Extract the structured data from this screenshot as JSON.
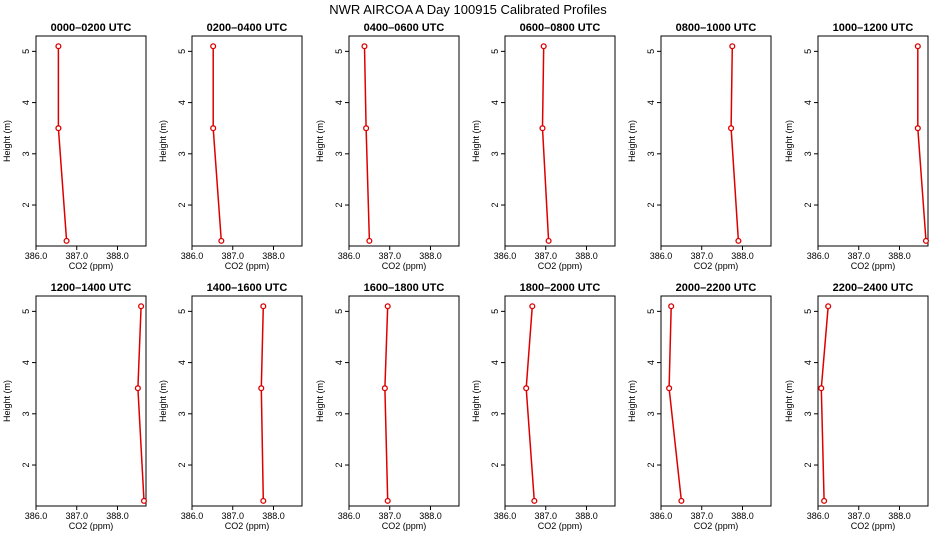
{
  "title": "NWR AIRCOA A  Day 100915  Calibrated Profiles",
  "colors": {
    "series": "#dd0000",
    "frame": "#000000"
  },
  "chart_data": [
    {
      "type": "line",
      "title": "0000–0200 UTC",
      "xlabel": "CO2 (ppm)",
      "ylabel": "Height (m)",
      "xlim": [
        386.0,
        388.7
      ],
      "ylim": [
        1.2,
        5.3
      ],
      "x_ticks": [
        "386.0",
        "387.0",
        "388.0"
      ],
      "y_ticks": [
        "2",
        "3",
        "4",
        "5"
      ],
      "grid": false,
      "points": [
        {
          "x": 386.75,
          "y": 1.3
        },
        {
          "x": 386.55,
          "y": 3.5
        },
        {
          "x": 386.55,
          "y": 5.1
        }
      ]
    },
    {
      "type": "line",
      "title": "0200–0400 UTC",
      "xlabel": "CO2 (ppm)",
      "ylabel": "Height (m)",
      "xlim": [
        386.0,
        388.7
      ],
      "ylim": [
        1.2,
        5.3
      ],
      "x_ticks": [
        "386.0",
        "387.0",
        "388.0"
      ],
      "y_ticks": [
        "2",
        "3",
        "4",
        "5"
      ],
      "grid": false,
      "points": [
        {
          "x": 386.72,
          "y": 1.3
        },
        {
          "x": 386.52,
          "y": 3.5
        },
        {
          "x": 386.52,
          "y": 5.1
        }
      ]
    },
    {
      "type": "line",
      "title": "0400–0600 UTC",
      "xlabel": "CO2 (ppm)",
      "ylabel": "Height (m)",
      "xlim": [
        386.0,
        388.7
      ],
      "ylim": [
        1.2,
        5.3
      ],
      "x_ticks": [
        "386.0",
        "387.0",
        "388.0"
      ],
      "y_ticks": [
        "2",
        "3",
        "4",
        "5"
      ],
      "grid": false,
      "points": [
        {
          "x": 386.5,
          "y": 1.3
        },
        {
          "x": 386.42,
          "y": 3.5
        },
        {
          "x": 386.38,
          "y": 5.1
        }
      ]
    },
    {
      "type": "line",
      "title": "0600–0800 UTC",
      "xlabel": "CO2 (ppm)",
      "ylabel": "Height (m)",
      "xlim": [
        386.0,
        388.7
      ],
      "ylim": [
        1.2,
        5.3
      ],
      "x_ticks": [
        "386.0",
        "387.0",
        "388.0"
      ],
      "y_ticks": [
        "2",
        "3",
        "4",
        "5"
      ],
      "grid": false,
      "points": [
        {
          "x": 387.07,
          "y": 1.3
        },
        {
          "x": 386.92,
          "y": 3.5
        },
        {
          "x": 386.95,
          "y": 5.1
        }
      ]
    },
    {
      "type": "line",
      "title": "0800–1000 UTC",
      "xlabel": "CO2 (ppm)",
      "ylabel": "Height (m)",
      "xlim": [
        386.0,
        388.7
      ],
      "ylim": [
        1.2,
        5.3
      ],
      "x_ticks": [
        "386.0",
        "387.0",
        "388.0"
      ],
      "y_ticks": [
        "2",
        "3",
        "4",
        "5"
      ],
      "grid": false,
      "points": [
        {
          "x": 387.9,
          "y": 1.3
        },
        {
          "x": 387.72,
          "y": 3.5
        },
        {
          "x": 387.75,
          "y": 5.1
        }
      ]
    },
    {
      "type": "line",
      "title": "1000–1200 UTC",
      "xlabel": "CO2 (ppm)",
      "ylabel": "Height (m)",
      "xlim": [
        386.0,
        388.7
      ],
      "ylim": [
        1.2,
        5.3
      ],
      "x_ticks": [
        "386.0",
        "387.0",
        "388.0"
      ],
      "y_ticks": [
        "2",
        "3",
        "4",
        "5"
      ],
      "grid": false,
      "points": [
        {
          "x": 388.65,
          "y": 1.3
        },
        {
          "x": 388.45,
          "y": 3.5
        },
        {
          "x": 388.45,
          "y": 5.1
        }
      ]
    },
    {
      "type": "line",
      "title": "1200–1400 UTC",
      "xlabel": "CO2 (ppm)",
      "ylabel": "Height (m)",
      "xlim": [
        386.0,
        388.7
      ],
      "ylim": [
        1.2,
        5.3
      ],
      "x_ticks": [
        "386.0",
        "387.0",
        "388.0"
      ],
      "y_ticks": [
        "2",
        "3",
        "4",
        "5"
      ],
      "grid": false,
      "points": [
        {
          "x": 388.65,
          "y": 1.3
        },
        {
          "x": 388.5,
          "y": 3.5
        },
        {
          "x": 388.58,
          "y": 5.1
        }
      ]
    },
    {
      "type": "line",
      "title": "1400–1600 UTC",
      "xlabel": "CO2 (ppm)",
      "ylabel": "Height (m)",
      "xlim": [
        386.0,
        388.7
      ],
      "ylim": [
        1.2,
        5.3
      ],
      "x_ticks": [
        "386.0",
        "387.0",
        "388.0"
      ],
      "y_ticks": [
        "2",
        "3",
        "4",
        "5"
      ],
      "grid": false,
      "points": [
        {
          "x": 387.75,
          "y": 1.3
        },
        {
          "x": 387.7,
          "y": 3.5
        },
        {
          "x": 387.75,
          "y": 5.1
        }
      ]
    },
    {
      "type": "line",
      "title": "1600–1800 UTC",
      "xlabel": "CO2 (ppm)",
      "ylabel": "Height (m)",
      "xlim": [
        386.0,
        388.7
      ],
      "ylim": [
        1.2,
        5.3
      ],
      "x_ticks": [
        "386.0",
        "387.0",
        "388.0"
      ],
      "y_ticks": [
        "2",
        "3",
        "4",
        "5"
      ],
      "grid": false,
      "points": [
        {
          "x": 386.95,
          "y": 1.3
        },
        {
          "x": 386.88,
          "y": 3.5
        },
        {
          "x": 386.95,
          "y": 5.1
        }
      ]
    },
    {
      "type": "line",
      "title": "1800–2000 UTC",
      "xlabel": "CO2 (ppm)",
      "ylabel": "Height (m)",
      "xlim": [
        386.0,
        388.7
      ],
      "ylim": [
        1.2,
        5.3
      ],
      "x_ticks": [
        "386.0",
        "387.0",
        "388.0"
      ],
      "y_ticks": [
        "2",
        "3",
        "4",
        "5"
      ],
      "grid": false,
      "points": [
        {
          "x": 386.72,
          "y": 1.3
        },
        {
          "x": 386.52,
          "y": 3.5
        },
        {
          "x": 386.67,
          "y": 5.1
        }
      ]
    },
    {
      "type": "line",
      "title": "2000–2200 UTC",
      "xlabel": "CO2 (ppm)",
      "ylabel": "Height (m)",
      "xlim": [
        386.0,
        388.7
      ],
      "ylim": [
        1.2,
        5.3
      ],
      "x_ticks": [
        "386.0",
        "387.0",
        "388.0"
      ],
      "y_ticks": [
        "2",
        "3",
        "4",
        "5"
      ],
      "grid": false,
      "points": [
        {
          "x": 386.5,
          "y": 1.3
        },
        {
          "x": 386.2,
          "y": 3.5
        },
        {
          "x": 386.25,
          "y": 5.1
        }
      ]
    },
    {
      "type": "line",
      "title": "2200–2400 UTC",
      "xlabel": "CO2 (ppm)",
      "ylabel": "Height (m)",
      "xlim": [
        386.0,
        388.7
      ],
      "ylim": [
        1.2,
        5.3
      ],
      "x_ticks": [
        "386.0",
        "387.0",
        "388.0"
      ],
      "y_ticks": [
        "2",
        "3",
        "4",
        "5"
      ],
      "grid": false,
      "points": [
        {
          "x": 386.15,
          "y": 1.3
        },
        {
          "x": 386.08,
          "y": 3.5
        },
        {
          "x": 386.25,
          "y": 5.1
        }
      ]
    }
  ]
}
